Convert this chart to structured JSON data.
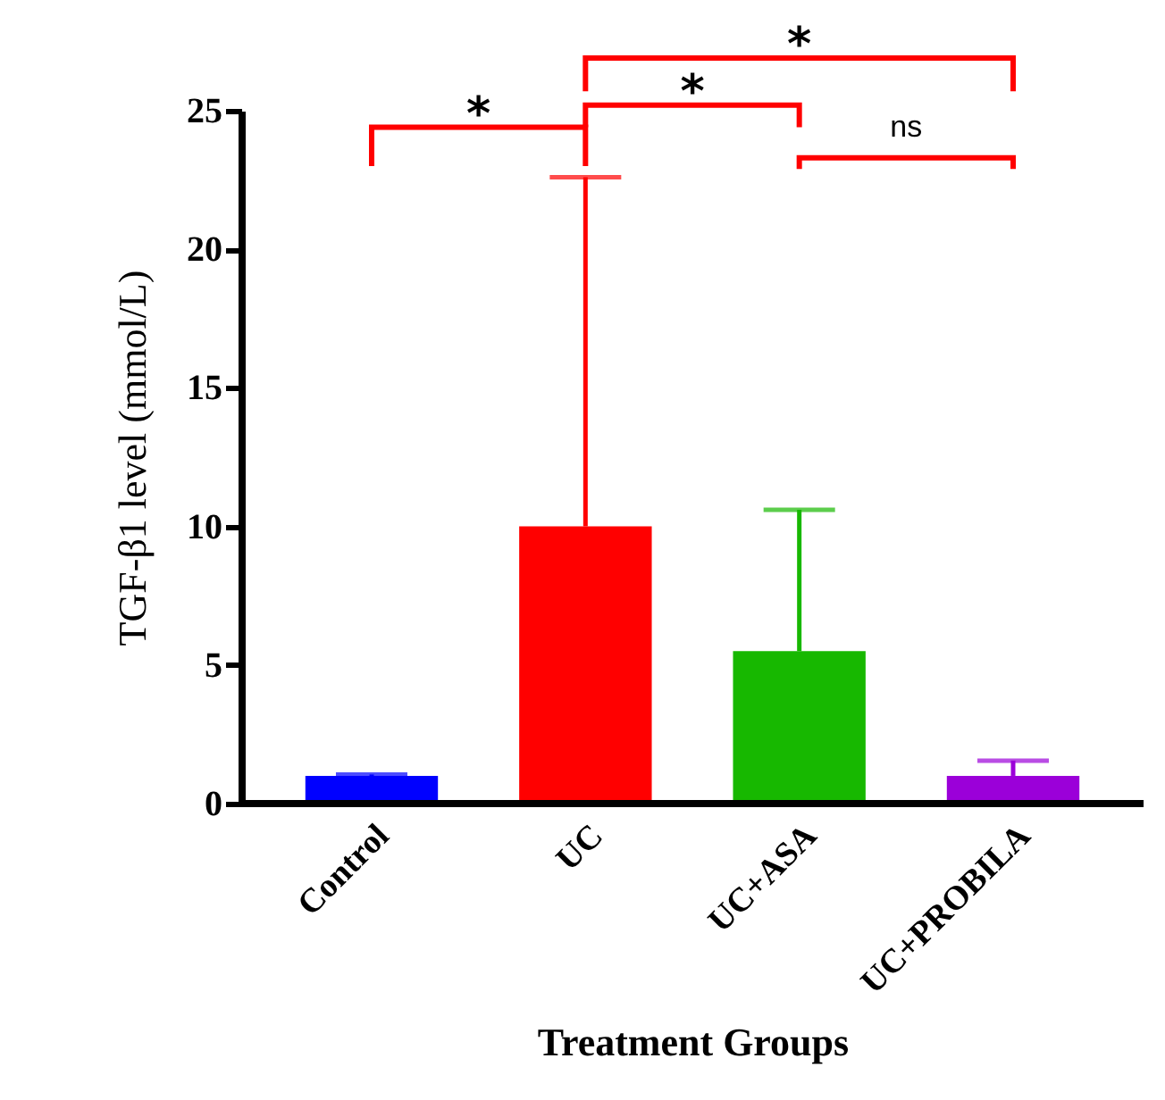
{
  "chart_data": {
    "type": "bar",
    "xlabel": "Treatment Groups",
    "ylabel": "TGF-β1 level (mmol/L)",
    "categories": [
      "Control",
      "UC",
      "UC+ASA",
      "UC+PROBILA"
    ],
    "values": [
      1.0,
      10.0,
      5.5,
      1.0
    ],
    "colors": [
      "#0000ff",
      "#ff0000",
      "#17b800",
      "#9b00d9"
    ],
    "errors": [
      [
        1.0,
        1.05
      ],
      [
        10.0,
        22.6
      ],
      [
        5.5,
        10.6
      ],
      [
        1.0,
        1.55
      ]
    ],
    "ylim": [
      0,
      25
    ],
    "yticks": [
      0,
      5,
      10,
      15,
      20,
      25
    ],
    "annotations": [
      "*",
      "*",
      "*",
      "ns"
    ]
  }
}
